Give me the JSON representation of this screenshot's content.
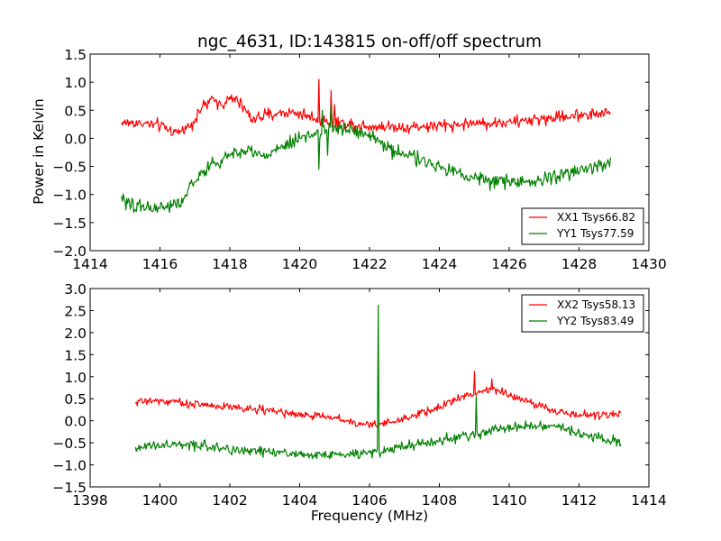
{
  "chart_data": [
    {
      "type": "line",
      "title": "ngc_4631, ID:143815 on-off/off spectrum",
      "xlabel": "",
      "ylabel": "Power in Kelvin",
      "xlim": [
        1414,
        1430
      ],
      "ylim": [
        -2.0,
        1.5
      ],
      "xticks": [
        "1414",
        "1416",
        "1418",
        "1420",
        "1422",
        "1424",
        "1426",
        "1428",
        "1430"
      ],
      "yticks": [
        "1.5",
        "1.0",
        "0.5",
        "0.0",
        "−0.5",
        "−1.0",
        "−1.5",
        "−2.0"
      ],
      "xtick_values": [
        1414,
        1416,
        1418,
        1420,
        1422,
        1424,
        1426,
        1428,
        1430
      ],
      "ytick_values": [
        1.5,
        1.0,
        0.5,
        0.0,
        -0.5,
        -1.0,
        -1.5,
        -2.0
      ],
      "grid": false,
      "legend_position": "lower-right",
      "series": [
        {
          "name": "XX1 Tsys66.82",
          "color": "#ff0000",
          "x_range": [
            1414.9,
            1428.9
          ],
          "noise": 0.09,
          "baseline": [
            [
              1414.9,
              0.28
            ],
            [
              1415.5,
              0.27
            ],
            [
              1416.0,
              0.22
            ],
            [
              1416.5,
              0.1
            ],
            [
              1416.9,
              0.25
            ],
            [
              1417.2,
              0.55
            ],
            [
              1417.5,
              0.68
            ],
            [
              1417.8,
              0.62
            ],
            [
              1418.1,
              0.72
            ],
            [
              1418.4,
              0.55
            ],
            [
              1418.6,
              0.35
            ],
            [
              1419.0,
              0.4
            ],
            [
              1419.5,
              0.46
            ],
            [
              1420.0,
              0.45
            ],
            [
              1420.3,
              0.38
            ],
            [
              1420.8,
              0.3
            ],
            [
              1421.5,
              0.25
            ],
            [
              1422.0,
              0.22
            ],
            [
              1423.0,
              0.2
            ],
            [
              1424.0,
              0.22
            ],
            [
              1425.0,
              0.27
            ],
            [
              1426.0,
              0.28
            ],
            [
              1427.0,
              0.35
            ],
            [
              1428.0,
              0.42
            ],
            [
              1428.9,
              0.45
            ]
          ],
          "spikes": [
            [
              1420.55,
              1.05
            ],
            [
              1420.65,
              0.25
            ],
            [
              1420.9,
              0.85
            ],
            [
              1421.0,
              0.6
            ]
          ]
        },
        {
          "name": "YY1 Tsys77.59",
          "color": "#008000",
          "x_range": [
            1414.9,
            1428.9
          ],
          "noise": 0.1,
          "baseline": [
            [
              1414.9,
              -1.1
            ],
            [
              1415.5,
              -1.22
            ],
            [
              1416.0,
              -1.25
            ],
            [
              1416.6,
              -1.15
            ],
            [
              1417.0,
              -0.75
            ],
            [
              1417.5,
              -0.45
            ],
            [
              1418.0,
              -0.3
            ],
            [
              1418.5,
              -0.2
            ],
            [
              1419.0,
              -0.3
            ],
            [
              1419.5,
              -0.15
            ],
            [
              1420.0,
              0.0
            ],
            [
              1420.5,
              0.1
            ],
            [
              1421.0,
              0.2
            ],
            [
              1421.5,
              0.15
            ],
            [
              1422.0,
              0.05
            ],
            [
              1422.5,
              -0.15
            ],
            [
              1423.0,
              -0.3
            ],
            [
              1424.0,
              -0.5
            ],
            [
              1425.0,
              -0.7
            ],
            [
              1426.0,
              -0.8
            ],
            [
              1427.0,
              -0.75
            ],
            [
              1428.0,
              -0.55
            ],
            [
              1428.9,
              -0.45
            ]
          ],
          "spikes": [
            [
              1420.55,
              -0.55
            ],
            [
              1420.65,
              0.5
            ],
            [
              1420.8,
              -0.3
            ],
            [
              1420.9,
              0.6
            ]
          ]
        }
      ]
    },
    {
      "type": "line",
      "title": "",
      "xlabel": "Frequency (MHz)",
      "ylabel": "",
      "xlim": [
        1398,
        1414
      ],
      "ylim": [
        -1.5,
        3.0
      ],
      "xticks": [
        "1398",
        "1400",
        "1402",
        "1404",
        "1406",
        "1408",
        "1410",
        "1412",
        "1414"
      ],
      "yticks": [
        "3.0",
        "2.5",
        "2.0",
        "1.5",
        "1.0",
        "0.5",
        "0.0",
        "−0.5",
        "−1.0",
        "−1.5"
      ],
      "xtick_values": [
        1398,
        1400,
        1402,
        1404,
        1406,
        1408,
        1410,
        1412,
        1414
      ],
      "ytick_values": [
        3.0,
        2.5,
        2.0,
        1.5,
        1.0,
        0.5,
        0.0,
        -0.5,
        -1.0,
        -1.5
      ],
      "grid": false,
      "legend_position": "upper-right",
      "series": [
        {
          "name": "XX2 Tsys58.13",
          "color": "#ff0000",
          "x_range": [
            1399.3,
            1413.2
          ],
          "noise": 0.08,
          "baseline": [
            [
              1399.3,
              0.45
            ],
            [
              1400.0,
              0.45
            ],
            [
              1401.0,
              0.38
            ],
            [
              1402.0,
              0.32
            ],
            [
              1403.0,
              0.25
            ],
            [
              1404.0,
              0.15
            ],
            [
              1405.0,
              0.05
            ],
            [
              1406.0,
              -0.1
            ],
            [
              1406.5,
              -0.05
            ],
            [
              1407.0,
              0.05
            ],
            [
              1408.0,
              0.3
            ],
            [
              1408.5,
              0.5
            ],
            [
              1409.0,
              0.65
            ],
            [
              1409.5,
              0.7
            ],
            [
              1410.0,
              0.6
            ],
            [
              1410.5,
              0.45
            ],
            [
              1411.0,
              0.3
            ],
            [
              1411.5,
              0.2
            ],
            [
              1412.0,
              0.12
            ],
            [
              1413.2,
              0.15
            ]
          ],
          "spikes": [
            [
              1409.0,
              1.12
            ],
            [
              1409.5,
              0.95
            ]
          ]
        },
        {
          "name": "YY2 Tsys83.49",
          "color": "#008000",
          "x_range": [
            1399.3,
            1413.2
          ],
          "noise": 0.09,
          "baseline": [
            [
              1399.3,
              -0.6
            ],
            [
              1400.0,
              -0.55
            ],
            [
              1401.0,
              -0.55
            ],
            [
              1402.0,
              -0.65
            ],
            [
              1403.0,
              -0.7
            ],
            [
              1404.0,
              -0.75
            ],
            [
              1405.0,
              -0.78
            ],
            [
              1406.0,
              -0.72
            ],
            [
              1407.0,
              -0.6
            ],
            [
              1408.0,
              -0.45
            ],
            [
              1409.0,
              -0.3
            ],
            [
              1410.0,
              -0.15
            ],
            [
              1411.0,
              -0.1
            ],
            [
              1411.5,
              -0.15
            ],
            [
              1412.0,
              -0.3
            ],
            [
              1413.2,
              -0.5
            ]
          ],
          "spikes": [
            [
              1406.25,
              2.62
            ],
            [
              1409.05,
              0.55
            ]
          ]
        }
      ]
    }
  ]
}
